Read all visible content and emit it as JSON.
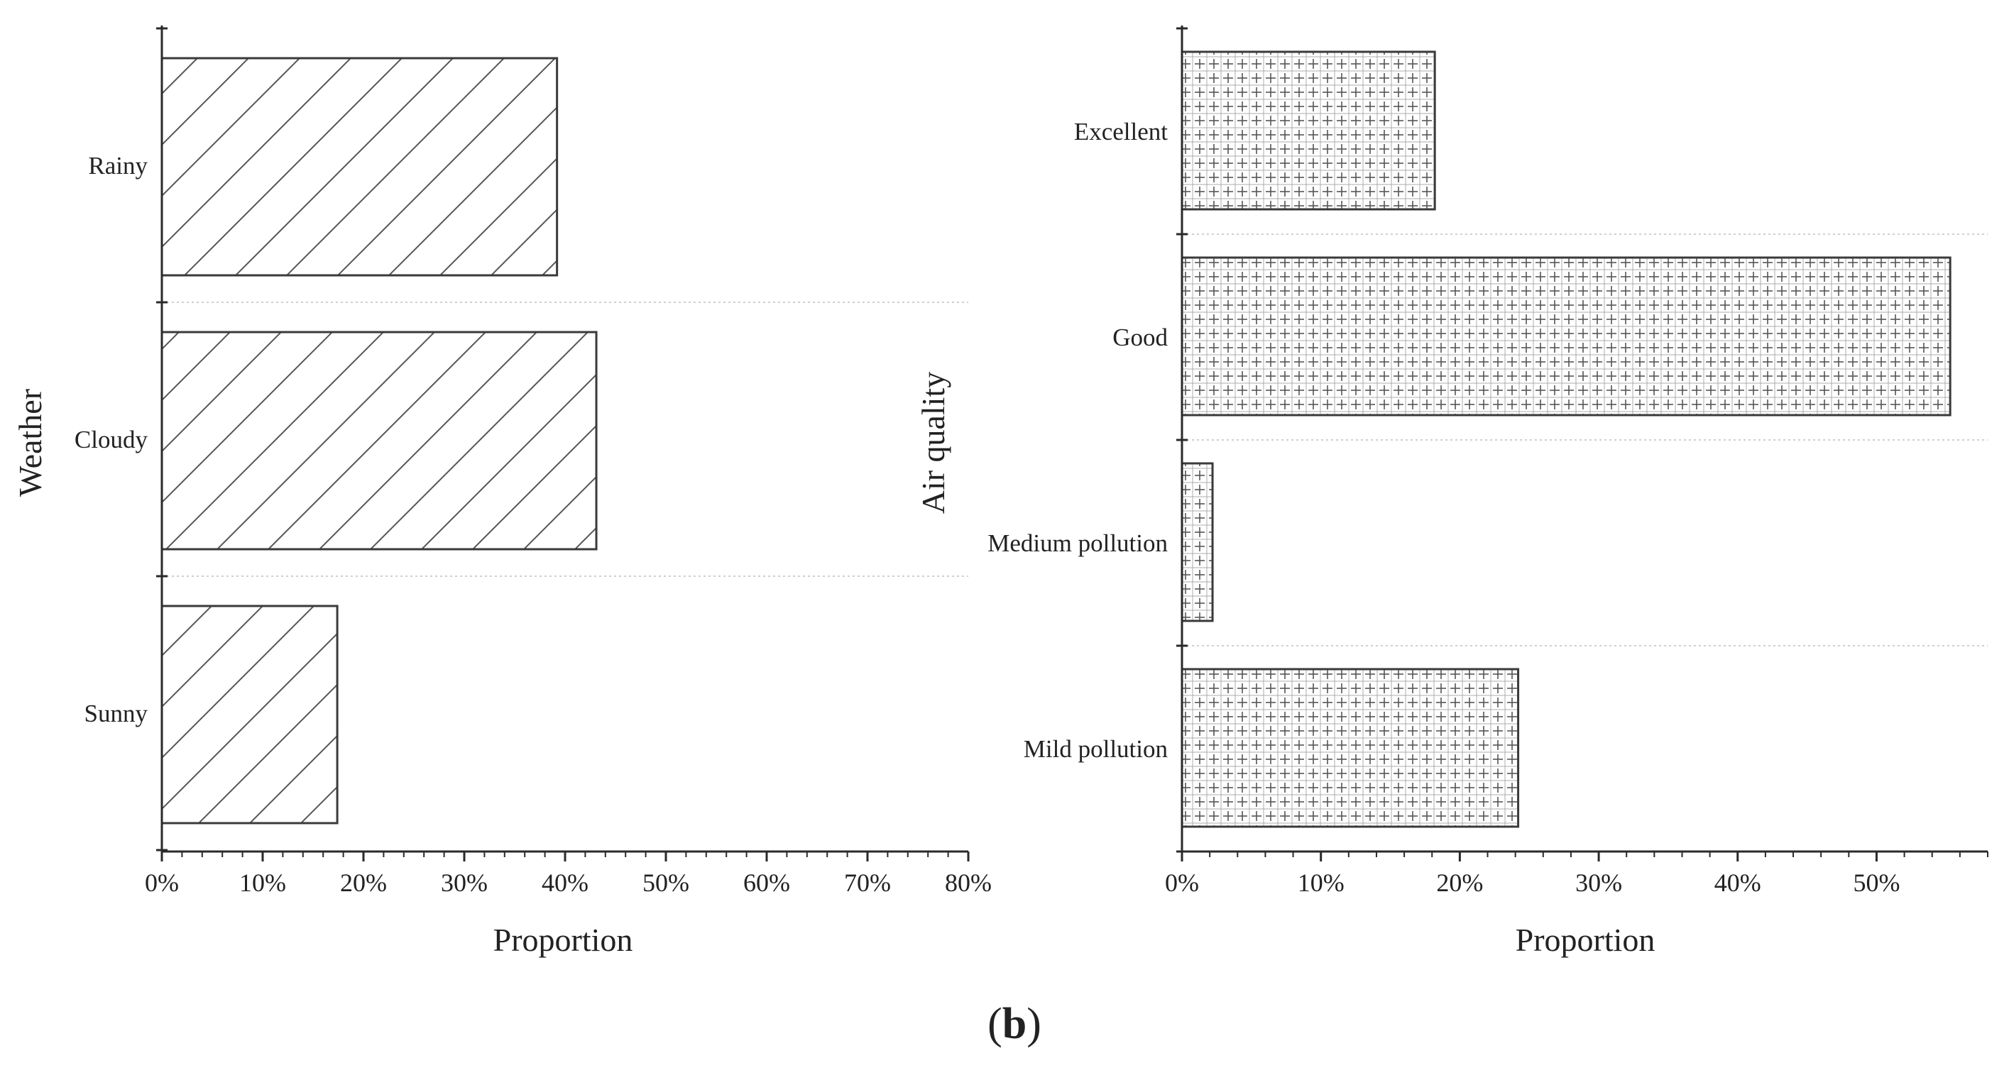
{
  "figure_label": {
    "open": "(",
    "letter": "b",
    "close": ")"
  },
  "colors": {
    "axis": "#2a2a2a",
    "bar_stroke": "#3a3a3a",
    "grid": "#cfcfcf",
    "hatch": "#555555",
    "bar_fill": "#ffffff"
  },
  "chart_data": [
    {
      "type": "bar",
      "orientation": "horizontal",
      "title": "",
      "xlabel": "Proportion",
      "ylabel": "Weather",
      "categories": [
        "Rainy",
        "Cloudy",
        "Sunny"
      ],
      "values": [
        39.2,
        43.1,
        17.4
      ],
      "xlim": [
        0,
        80
      ],
      "xticks": [
        "0%",
        "10%",
        "20%",
        "30%",
        "40%",
        "50%",
        "60%",
        "70%",
        "80%"
      ],
      "pattern": "diagonal-hatch",
      "grid": "dotted separators between categories"
    },
    {
      "type": "bar",
      "orientation": "horizontal",
      "title": "",
      "xlabel": "Proportion",
      "ylabel": "Air quality",
      "categories": [
        "Excellent",
        "Good",
        "Medium pollution",
        "Mild pollution"
      ],
      "values": [
        18.2,
        55.3,
        2.2,
        24.2
      ],
      "xlim": [
        0,
        58
      ],
      "xticks": [
        "0%",
        "10%",
        "20%",
        "30%",
        "40%",
        "50%"
      ],
      "pattern": "plus-grid",
      "grid": "dotted separators between categories"
    }
  ]
}
